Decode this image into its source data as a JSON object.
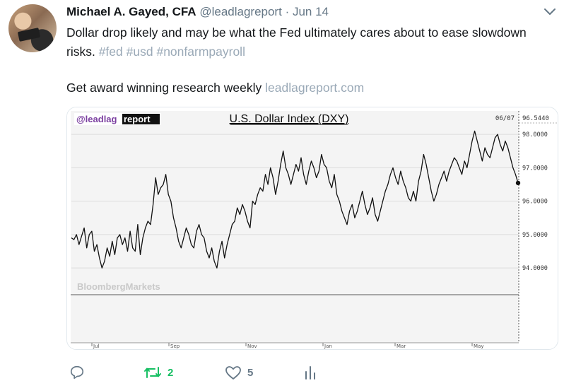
{
  "tweet": {
    "author_name": "Michael A. Gayed, CFA",
    "handle": "@leadlagreport",
    "separator": "·",
    "date": "Jun 14",
    "text_prefix": "Dollar drop likely and may be what the Fed ultimately cares about to ease slowdown risks.",
    "hashtags": [
      "#fed",
      "#usd",
      "#nonfarmpayroll"
    ],
    "line2_text": "Get award winning research weekly",
    "line2_link": "leadlagreport.com"
  },
  "chart": {
    "logo_prefix": "@leadlag",
    "logo_box": "report",
    "title": "U.S. Dollar Index (DXY)",
    "last_date": "06/07",
    "last_value": "96.5440",
    "watermark": "BloombergMarkets"
  },
  "chart_data": {
    "type": "line",
    "title": "U.S. Dollar Index (DXY)",
    "y_ticks": [
      "98.0000",
      "97.0000",
      "96.0000",
      "95.0000",
      "94.0000"
    ],
    "x_ticks": [
      "Jul",
      "Sep",
      "Nov",
      "Jan",
      "Mar",
      "May"
    ],
    "ylim": [
      93.2,
      98.7
    ],
    "series": [
      {
        "values": [
          94.9,
          94.85,
          95.0,
          94.7,
          94.95,
          95.2,
          94.6,
          95.0,
          95.1,
          94.5,
          94.7,
          94.3,
          94.0,
          94.2,
          94.6,
          94.35,
          94.8,
          94.4,
          94.9,
          95.0,
          94.7,
          94.9,
          94.5,
          95.1,
          94.6,
          94.5,
          95.3,
          94.4,
          94.9,
          95.2,
          95.4,
          95.3,
          95.9,
          96.7,
          96.2,
          96.4,
          96.5,
          96.8,
          96.2,
          96.0,
          95.5,
          95.2,
          94.8,
          94.6,
          94.9,
          95.2,
          95.0,
          94.7,
          94.6,
          95.1,
          95.3,
          95.0,
          94.9,
          94.5,
          94.3,
          94.6,
          94.2,
          94.0,
          94.5,
          94.8,
          94.3,
          94.7,
          95.0,
          95.3,
          95.4,
          95.8,
          95.6,
          95.9,
          95.7,
          95.4,
          95.2,
          96.0,
          95.9,
          96.2,
          96.4,
          96.3,
          96.8,
          96.5,
          97.0,
          96.7,
          96.2,
          96.6,
          97.1,
          97.5,
          97.0,
          96.8,
          96.5,
          96.8,
          97.1,
          96.9,
          97.3,
          96.8,
          96.5,
          96.9,
          97.2,
          97.0,
          96.7,
          96.9,
          97.4,
          97.1,
          97.0,
          96.6,
          96.4,
          96.8,
          96.2,
          96.0,
          95.7,
          95.5,
          95.3,
          95.7,
          95.9,
          95.5,
          95.7,
          96.0,
          96.3,
          95.9,
          95.6,
          95.8,
          96.1,
          95.6,
          95.4,
          95.7,
          96.0,
          96.3,
          96.5,
          96.8,
          97.0,
          96.7,
          96.5,
          96.9,
          96.6,
          96.4,
          96.1,
          96.0,
          96.3,
          96.0,
          96.6,
          96.9,
          97.4,
          97.1,
          96.7,
          96.3,
          96.0,
          96.2,
          96.5,
          96.7,
          96.9,
          96.6,
          96.9,
          97.1,
          97.3,
          97.2,
          97.0,
          96.8,
          97.2,
          97.0,
          97.4,
          97.8,
          98.1,
          97.8,
          97.5,
          97.2,
          97.6,
          97.4,
          97.3,
          97.6,
          97.9,
          98.0,
          97.7,
          97.5,
          97.8,
          97.6,
          97.3,
          97.0,
          96.8,
          96.544
        ]
      }
    ]
  },
  "actions": {
    "reply_icon": "reply-icon",
    "retweet_count": "2",
    "like_count": "5",
    "stats_icon": "analytics-icon"
  },
  "colors": {
    "accent_retweet": "#17bf63",
    "muted": "#657786",
    "link": "#9aa9b7"
  }
}
